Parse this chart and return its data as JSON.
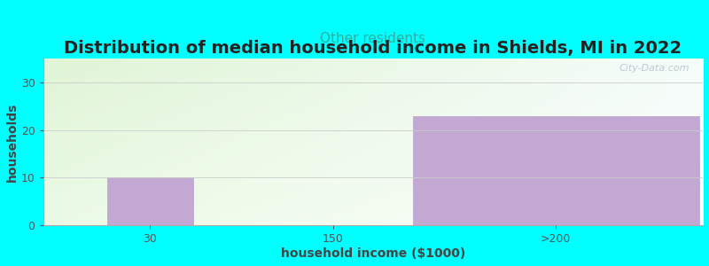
{
  "title": "Distribution of median household income in Shields, MI in 2022",
  "subtitle": "Other residents",
  "xlabel": "household income ($1000)",
  "ylabel": "households",
  "background_color": "#00FFFF",
  "bar_color": "#c4a8d4",
  "bar_edge_color": "#b8a0cc",
  "categories": [
    "30",
    "150",
    ">200"
  ],
  "bar_values": [
    10,
    23
  ],
  "ylim": [
    0,
    35
  ],
  "yticks": [
    0,
    10,
    20,
    30
  ],
  "title_fontsize": 14,
  "subtitle_fontsize": 11,
  "subtitle_color": "#30b0a0",
  "axis_label_fontsize": 10,
  "tick_fontsize": 9,
  "watermark": "City-Data.com",
  "gradient_color_topleft": [
    0.88,
    0.96,
    0.84,
    1.0
  ],
  "gradient_color_topright": [
    0.96,
    0.99,
    0.98,
    1.0
  ],
  "gradient_color_bottomleft": [
    0.92,
    0.98,
    0.9,
    1.0
  ],
  "gradient_color_bottomright": [
    1.0,
    1.0,
    1.0,
    1.0
  ]
}
